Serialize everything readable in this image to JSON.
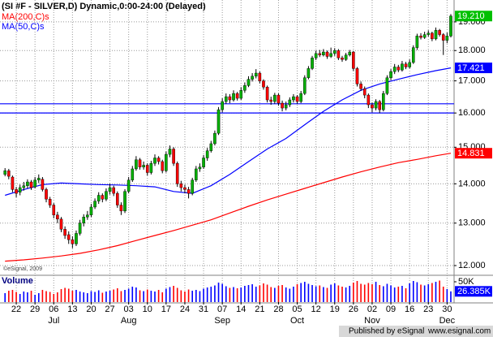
{
  "chart_data": {
    "type": "candlestick",
    "title": "(SI #F - SILVER,D) Dynamic,0:00-24:00 (Delayed)",
    "watermark": "©eSignal, 2009",
    "footer_left": "Published by eSignal",
    "footer_right": "www.esignal.com",
    "log_scale": true,
    "grid": true,
    "ylim": [
      11.8,
      19.8
    ],
    "yticks": [
      {
        "value": 12,
        "label": "12.000"
      },
      {
        "value": 13,
        "label": "13.000"
      },
      {
        "value": 14,
        "label": "14.000"
      },
      {
        "value": 15,
        "label": "15.000"
      },
      {
        "value": 16,
        "label": "16.000"
      },
      {
        "value": 17,
        "label": "17.000"
      },
      {
        "value": 18,
        "label": "18.000"
      },
      {
        "value": 19,
        "label": "19.000"
      }
    ],
    "ohlc": {
      "color_up": "#00b000",
      "color_down": "#ff0000",
      "label_color": "#00c000",
      "last_label": "19.210",
      "values": [
        [
          14.25,
          14.42,
          14.2,
          14.35
        ],
        [
          14.35,
          14.4,
          14.12,
          14.2
        ],
        [
          14.18,
          14.22,
          13.78,
          13.85
        ],
        [
          13.85,
          13.92,
          13.65,
          13.75
        ],
        [
          13.78,
          13.98,
          13.7,
          13.9
        ],
        [
          13.9,
          14.05,
          13.82,
          13.95
        ],
        [
          13.95,
          14.12,
          13.88,
          14.05
        ],
        [
          14.05,
          14.1,
          13.84,
          13.9
        ],
        [
          13.92,
          14.18,
          13.88,
          14.1
        ],
        [
          14.1,
          14.25,
          14.02,
          14.15
        ],
        [
          14.12,
          14.18,
          13.8,
          13.85
        ],
        [
          13.85,
          13.9,
          13.52,
          13.6
        ],
        [
          13.6,
          13.66,
          13.38,
          13.45
        ],
        [
          13.45,
          13.5,
          13.12,
          13.2
        ],
        [
          13.2,
          13.28,
          13.0,
          13.1
        ],
        [
          13.1,
          13.15,
          12.78,
          12.85
        ],
        [
          12.85,
          12.92,
          12.62,
          12.7
        ],
        [
          12.72,
          12.8,
          12.5,
          12.6
        ],
        [
          12.6,
          12.68,
          12.4,
          12.5
        ],
        [
          12.5,
          12.82,
          12.45,
          12.75
        ],
        [
          12.75,
          13.08,
          12.7,
          13.0
        ],
        [
          13.0,
          13.22,
          12.92,
          13.15
        ],
        [
          13.15,
          13.3,
          13.08,
          13.2
        ],
        [
          13.2,
          13.48,
          13.15,
          13.4
        ],
        [
          13.4,
          13.62,
          13.35,
          13.55
        ],
        [
          13.55,
          13.78,
          13.48,
          13.7
        ],
        [
          13.7,
          13.75,
          13.52,
          13.6
        ],
        [
          13.6,
          13.88,
          13.55,
          13.8
        ],
        [
          13.8,
          14.0,
          13.72,
          13.9
        ],
        [
          13.9,
          13.95,
          13.68,
          13.75
        ],
        [
          13.75,
          13.8,
          13.38,
          13.45
        ],
        [
          13.45,
          13.52,
          13.2,
          13.3
        ],
        [
          13.3,
          13.86,
          13.25,
          13.8
        ],
        [
          13.8,
          14.18,
          13.75,
          14.1
        ],
        [
          14.1,
          14.48,
          14.05,
          14.4
        ],
        [
          14.4,
          14.75,
          14.35,
          14.65
        ],
        [
          14.65,
          14.7,
          14.38,
          14.45
        ],
        [
          14.45,
          14.6,
          14.38,
          14.5
        ],
        [
          14.5,
          14.55,
          14.22,
          14.3
        ],
        [
          14.3,
          14.62,
          14.25,
          14.55
        ],
        [
          14.55,
          14.8,
          14.48,
          14.7
        ],
        [
          14.7,
          14.75,
          14.52,
          14.6
        ],
        [
          14.6,
          14.65,
          14.28,
          14.35
        ],
        [
          14.35,
          14.88,
          14.3,
          14.8
        ],
        [
          14.8,
          15.05,
          14.72,
          14.95
        ],
        [
          14.95,
          15.0,
          14.48,
          14.55
        ],
        [
          14.55,
          14.6,
          13.92,
          14.0
        ],
        [
          14.0,
          14.08,
          13.8,
          13.9
        ],
        [
          13.9,
          13.98,
          13.75,
          13.85
        ],
        [
          13.85,
          13.92,
          13.62,
          13.75
        ],
        [
          13.75,
          14.16,
          13.7,
          14.1
        ],
        [
          14.1,
          14.48,
          14.05,
          14.4
        ],
        [
          14.4,
          14.55,
          14.32,
          14.45
        ],
        [
          14.45,
          14.78,
          14.4,
          14.7
        ],
        [
          14.7,
          14.98,
          14.62,
          14.9
        ],
        [
          14.9,
          15.18,
          14.85,
          15.1
        ],
        [
          15.1,
          15.48,
          15.05,
          15.4
        ],
        [
          15.4,
          16.18,
          15.35,
          16.1
        ],
        [
          16.1,
          16.45,
          16.02,
          16.35
        ],
        [
          16.35,
          16.6,
          16.28,
          16.5
        ],
        [
          16.5,
          16.58,
          16.3,
          16.4
        ],
        [
          16.4,
          16.7,
          16.35,
          16.6
        ],
        [
          16.6,
          16.65,
          16.38,
          16.45
        ],
        [
          16.45,
          16.8,
          16.4,
          16.7
        ],
        [
          16.7,
          16.95,
          16.62,
          16.85
        ],
        [
          16.85,
          17.15,
          16.8,
          17.05
        ],
        [
          17.05,
          17.25,
          16.98,
          17.15
        ],
        [
          17.15,
          17.38,
          17.08,
          17.25
        ],
        [
          17.25,
          17.3,
          16.92,
          17.0
        ],
        [
          17.0,
          17.05,
          16.72,
          16.8
        ],
        [
          16.8,
          16.85,
          16.32,
          16.4
        ],
        [
          16.4,
          16.5,
          16.25,
          16.35
        ],
        [
          16.35,
          16.62,
          16.28,
          16.55
        ],
        [
          16.55,
          16.6,
          16.22,
          16.3
        ],
        [
          16.3,
          16.38,
          16.05,
          16.15
        ],
        [
          16.15,
          16.35,
          16.08,
          16.25
        ],
        [
          16.25,
          16.48,
          16.18,
          16.4
        ],
        [
          16.4,
          16.58,
          16.32,
          16.5
        ],
        [
          16.5,
          16.55,
          16.28,
          16.35
        ],
        [
          16.35,
          16.68,
          16.3,
          16.6
        ],
        [
          16.6,
          17.18,
          16.55,
          17.1
        ],
        [
          17.1,
          17.48,
          17.05,
          17.4
        ],
        [
          17.4,
          17.82,
          17.35,
          17.75
        ],
        [
          17.75,
          18.0,
          17.68,
          17.9
        ],
        [
          17.9,
          18.02,
          17.78,
          17.85
        ],
        [
          17.85,
          18.05,
          17.8,
          17.95
        ],
        [
          17.95,
          18.0,
          17.72,
          17.8
        ],
        [
          17.8,
          18.1,
          17.75,
          17.9
        ],
        [
          17.9,
          18.08,
          17.82,
          18.0
        ],
        [
          18.0,
          18.05,
          17.68,
          17.75
        ],
        [
          17.75,
          17.82,
          17.62,
          17.7
        ],
        [
          17.7,
          17.92,
          17.65,
          17.85
        ],
        [
          17.85,
          18.02,
          17.8,
          17.95
        ],
        [
          17.95,
          17.98,
          17.32,
          17.4
        ],
        [
          17.4,
          17.45,
          16.82,
          16.9
        ],
        [
          16.9,
          16.98,
          16.68,
          16.75
        ],
        [
          16.75,
          16.82,
          16.45,
          16.55
        ],
        [
          16.55,
          16.6,
          16.15,
          16.25
        ],
        [
          16.25,
          16.32,
          16.02,
          16.15
        ],
        [
          16.15,
          16.42,
          16.08,
          16.35
        ],
        [
          16.35,
          16.4,
          16.0,
          16.1
        ],
        [
          16.1,
          16.68,
          16.05,
          16.6
        ],
        [
          16.6,
          17.18,
          16.55,
          17.1
        ],
        [
          17.1,
          17.38,
          17.02,
          17.3
        ],
        [
          17.3,
          17.55,
          17.22,
          17.45
        ],
        [
          17.45,
          17.52,
          17.28,
          17.35
        ],
        [
          17.35,
          17.65,
          17.3,
          17.55
        ],
        [
          17.55,
          17.62,
          17.38,
          17.45
        ],
        [
          17.45,
          17.7,
          17.4,
          17.6
        ],
        [
          17.6,
          18.18,
          17.55,
          18.1
        ],
        [
          18.1,
          18.58,
          18.02,
          18.5
        ],
        [
          18.5,
          18.6,
          18.38,
          18.45
        ],
        [
          18.45,
          18.65,
          18.4,
          18.55
        ],
        [
          18.55,
          18.7,
          18.48,
          18.6
        ],
        [
          18.6,
          18.65,
          18.32,
          18.4
        ],
        [
          18.4,
          18.8,
          18.35,
          18.7
        ],
        [
          18.7,
          18.75,
          18.48,
          18.55
        ],
        [
          18.55,
          18.6,
          17.85,
          18.35
        ],
        [
          18.35,
          18.62,
          18.25,
          18.5
        ],
        [
          18.5,
          19.28,
          18.45,
          19.21
        ]
      ]
    },
    "series": [
      {
        "name": "MA(200,C)s",
        "color": "#ff0000",
        "values": [
          12.1,
          12.13,
          12.17,
          12.22,
          12.28,
          12.36,
          12.46,
          12.58,
          12.7,
          12.82,
          12.95,
          13.08,
          13.25,
          13.42,
          13.58,
          13.73,
          13.88,
          14.03,
          14.18,
          14.32,
          14.45,
          14.57,
          14.66,
          14.76,
          14.831
        ],
        "value_labels": [
          null,
          null,
          null,
          null,
          null,
          null,
          null,
          null,
          null,
          null,
          null,
          null,
          null,
          null,
          null,
          null,
          null,
          null,
          null,
          null,
          null,
          null,
          null,
          null,
          "14.831"
        ]
      },
      {
        "name": "MA(50,C)s",
        "color": "#0000ff",
        "values": [
          13.7,
          13.85,
          13.98,
          14.02,
          14.0,
          13.98,
          13.97,
          13.95,
          13.92,
          13.8,
          13.75,
          13.95,
          14.25,
          14.6,
          14.95,
          15.25,
          15.65,
          16.05,
          16.4,
          16.7,
          16.9,
          17.05,
          17.2,
          17.33,
          17.421
        ],
        "value_labels": [
          null,
          null,
          null,
          null,
          null,
          null,
          null,
          null,
          null,
          null,
          null,
          null,
          null,
          null,
          null,
          null,
          null,
          null,
          null,
          null,
          null,
          null,
          null,
          null,
          "17.421"
        ]
      }
    ],
    "hlines": {
      "color": "#0000ff",
      "values": [
        16.28,
        16.0
      ]
    },
    "volume": {
      "name": "Volume",
      "ylim": [
        0,
        64
      ],
      "yticks": [
        {
          "value": 50,
          "label": "50K"
        }
      ],
      "last_label": "26.385K",
      "values": [
        22,
        28,
        30,
        25,
        20,
        26,
        24,
        28,
        18,
        22,
        30,
        27,
        25,
        20,
        24,
        32,
        35,
        33,
        28,
        30,
        26,
        24,
        22,
        27,
        25,
        29,
        23,
        26,
        28,
        31,
        34,
        27,
        30,
        33,
        38,
        36,
        29,
        27,
        31,
        28,
        26,
        30,
        24,
        33,
        37,
        40,
        35,
        29,
        26,
        31,
        28,
        30,
        27,
        33,
        36,
        38,
        41,
        48,
        45,
        39,
        35,
        37,
        34,
        36,
        40,
        42,
        44,
        38,
        41,
        46,
        43,
        37,
        35,
        40,
        42,
        36,
        33,
        38,
        44,
        47,
        50,
        45,
        42,
        39,
        41,
        37,
        35,
        43,
        46,
        41,
        38,
        36,
        40,
        48,
        52,
        45,
        43,
        47,
        44,
        50,
        42,
        39,
        45,
        41,
        36,
        38,
        40,
        34,
        46,
        52,
        49,
        43,
        41,
        44,
        47,
        50,
        53,
        38,
        32,
        26.385
      ]
    },
    "week_labels": [
      "22",
      "29",
      "06",
      "13",
      "20",
      "27",
      "03",
      "10",
      "17",
      "24",
      "31",
      "07",
      "14",
      "21",
      "28",
      "05",
      "12",
      "19",
      "26",
      "02",
      "09",
      "16",
      "23",
      "30"
    ],
    "month_labels": [
      null,
      null,
      "Jul",
      null,
      null,
      null,
      "Aug",
      null,
      null,
      null,
      null,
      "Sep",
      null,
      null,
      null,
      "Oct",
      null,
      null,
      null,
      "Nov",
      null,
      null,
      null,
      "Dec"
    ]
  }
}
